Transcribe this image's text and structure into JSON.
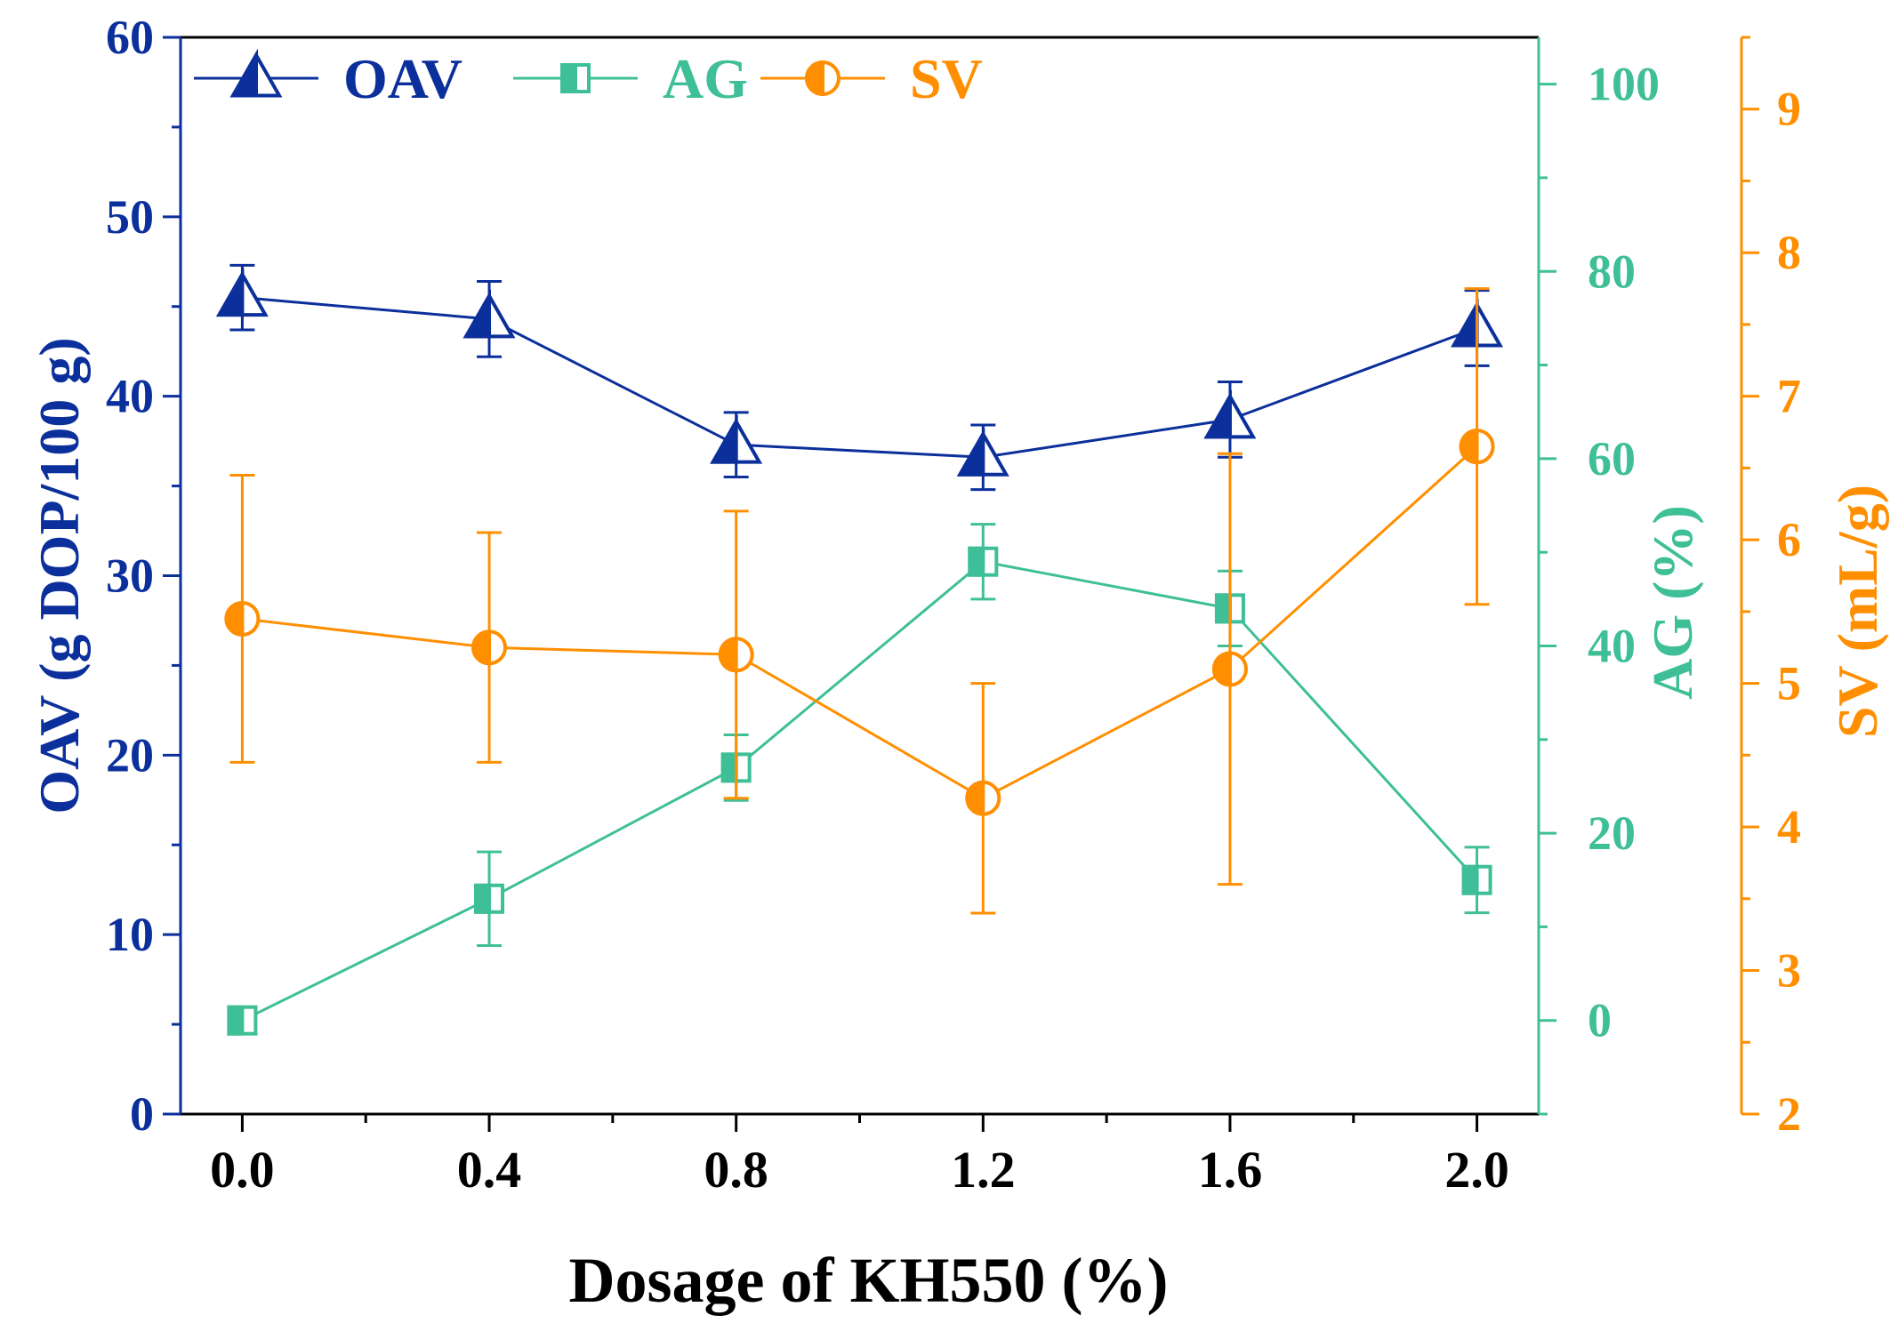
{
  "chart_data": {
    "type": "line",
    "xlabel": "Dosage of KH550 (%)",
    "x": [
      0.0,
      0.4,
      0.8,
      1.2,
      1.6,
      2.0
    ],
    "x_tick_labels": [
      "0.0",
      "0.4",
      "0.8",
      "1.2",
      "1.6",
      "2.0"
    ],
    "xlim": [
      -0.1,
      2.1
    ],
    "axes": [
      {
        "id": "oav",
        "label": "OAV (g DOP/100 g)",
        "ylim": [
          0,
          60
        ],
        "ticks": [
          0,
          10,
          20,
          30,
          40,
          50,
          60
        ],
        "tick_labels": [
          "0",
          "10",
          "20",
          "30",
          "40",
          "50",
          "60"
        ],
        "color": "#0b2f9b"
      },
      {
        "id": "ag",
        "label": "AG (%)",
        "ylim": [
          -10,
          105
        ],
        "ticks": [
          0,
          20,
          40,
          60,
          80,
          100
        ],
        "tick_labels": [
          "0",
          "20",
          "40",
          "60",
          "80",
          "100"
        ],
        "color": "#3fbf97"
      },
      {
        "id": "sv",
        "label": "SV (mL/g)",
        "ylim": [
          2,
          9.5
        ],
        "ticks": [
          2,
          3,
          4,
          5,
          6,
          7,
          8,
          9
        ],
        "tick_labels": [
          "2",
          "3",
          "4",
          "5",
          "6",
          "7",
          "8",
          "9"
        ],
        "color": "#ff8f00"
      }
    ],
    "series": [
      {
        "name": "OAV",
        "axis": "oav",
        "marker": "triangle-half",
        "color": "#0b2f9b",
        "values": [
          45.5,
          44.3,
          37.3,
          36.6,
          38.7,
          43.8
        ],
        "errors": [
          1.8,
          2.1,
          1.8,
          1.8,
          2.1,
          2.1
        ]
      },
      {
        "name": "AG",
        "axis": "ag",
        "marker": "square-half",
        "color": "#3fbf97",
        "values": [
          0,
          13,
          27,
          49,
          44,
          15
        ],
        "errors": [
          0,
          5,
          3.5,
          4,
          4,
          3.5
        ]
      },
      {
        "name": "SV",
        "axis": "sv",
        "marker": "circle-half",
        "color": "#ff8f00",
        "values": [
          5.45,
          5.25,
          5.2,
          4.2,
          5.1,
          6.65
        ],
        "errors": [
          1,
          0.8,
          1,
          0.8,
          1.5,
          1.1
        ]
      }
    ],
    "legend": {
      "position": "top-left",
      "entries": [
        "OAV",
        "AG",
        "SV"
      ]
    }
  }
}
